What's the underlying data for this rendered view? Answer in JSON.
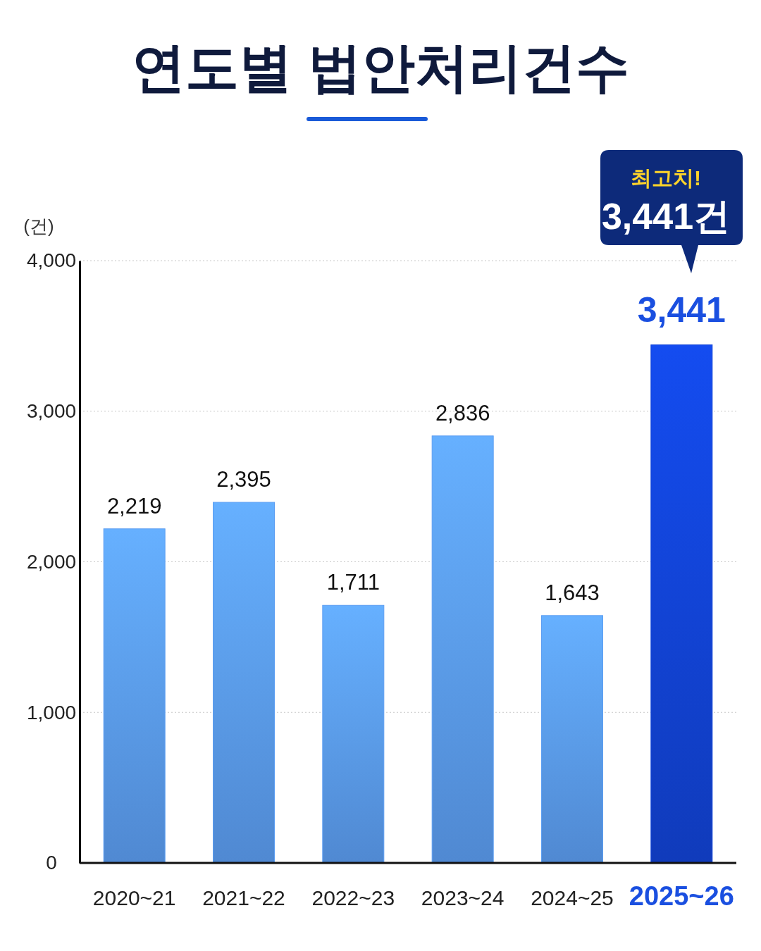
{
  "chart_data": {
    "type": "bar",
    "title": "연도별 법안처리건수",
    "ylabel": "(건)",
    "categories": [
      "2020~21",
      "2021~22",
      "2022~23",
      "2023~24",
      "2024~25",
      "2025~26"
    ],
    "values": [
      2219,
      2395,
      1711,
      2836,
      1643,
      3441
    ],
    "colors": [
      "#5c9ef2",
      "#5c9ef2",
      "#5c9ef2",
      "#5c9ef2",
      "#5c9ef2",
      "#1244d8"
    ],
    "ylim": [
      0,
      4000
    ],
    "yticks": [
      0,
      {
        "value": 1000,
        "label": "1,000"
      },
      {
        "value": 2000,
        "label": "2,000"
      },
      {
        "value": 3000,
        "label": "3,000"
      },
      {
        "value": 4000,
        "label": "4,000"
      }
    ],
    "grid": "y",
    "value_labels": [
      "2,219",
      "2,395",
      "1,711",
      "2,836",
      "1,643",
      "3,441"
    ],
    "annotations": [
      "최고치!",
      "3,441건"
    ]
  }
}
